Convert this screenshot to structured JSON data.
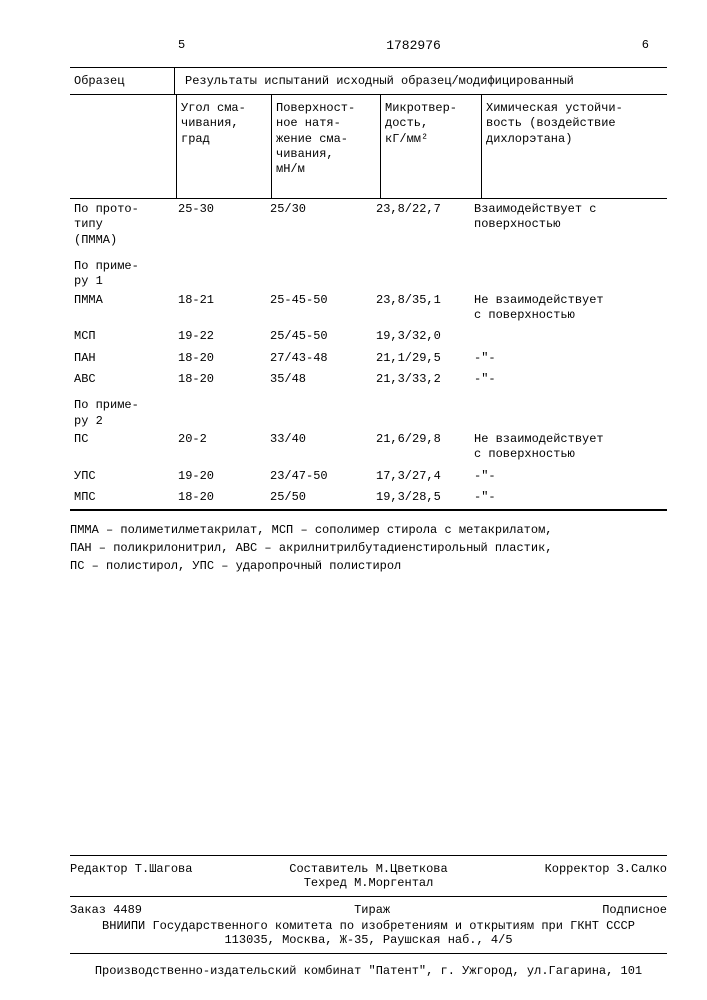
{
  "header": {
    "left_num": "5",
    "patent": "1782976",
    "right_num": "6"
  },
  "table": {
    "head_sample": "Образец",
    "head_results": "Результаты испытаний исходный образец/модифицированный",
    "sub": {
      "angle": "Угол сма-\nчивания,\nград",
      "tension": "Поверхност-\nное натя-\nжение сма-\nчивания,\nмН/м",
      "microhardness": "Микротвер-\nдость,\nкГ/мм²",
      "chemres": "Химическая устойчи-\nвость (воздействие\nдихлорэтана)"
    },
    "rows": [
      {
        "name": "По прото-\nтипу\n(ПММА)",
        "angle": "25-30",
        "tension": "25/30",
        "micro": "23,8/22,7",
        "chem": "Взаимодействует с\nповерхностью",
        "section": false
      },
      {
        "name": "По приме-\nру 1",
        "angle": "",
        "tension": "",
        "micro": "",
        "chem": "",
        "section": true
      },
      {
        "name": "ПММА",
        "angle": "18-21",
        "tension": "25-45-50",
        "micro": "23,8/35,1",
        "chem": "Не взаимодействует\nс поверхностью",
        "section": false
      },
      {
        "name": "МСП",
        "angle": "19-22",
        "tension": "25/45-50",
        "micro": "19,3/32,0",
        "chem": "",
        "section": false
      },
      {
        "name": "ПАН",
        "angle": "18-20",
        "tension": "27/43-48",
        "micro": "21,1/29,5",
        "chem": "-\"-",
        "section": false
      },
      {
        "name": "АВС",
        "angle": "18-20",
        "tension": "35/48",
        "micro": "21,3/33,2",
        "chem": "-\"-",
        "section": false
      },
      {
        "name": "По приме-\nру 2",
        "angle": "",
        "tension": "",
        "micro": "",
        "chem": "",
        "section": true
      },
      {
        "name": "ПС",
        "angle": "20-2",
        "tension": "33/40",
        "micro": "21,6/29,8",
        "chem": "Не взаимодействует\nс поверхностью",
        "section": false
      },
      {
        "name": "УПС",
        "angle": "19-20",
        "tension": "23/47-50",
        "micro": "17,3/27,4",
        "chem": "-\"-",
        "section": false
      },
      {
        "name": "МПС",
        "angle": "18-20",
        "tension": "25/50",
        "micro": "19,3/28,5",
        "chem": "-\"-",
        "section": false
      }
    ]
  },
  "legend": "ПММА – полиметилметакрилат,   МСП – сополимер стирола с метакрилатом,\nПАН – поликрилонитрил,   АВС – акрилнитрилбутадиенстирольный пластик,\nПС – полистирол,   УПС – ударопрочный полистирол",
  "footer": {
    "editor": "Редактор Т.Шагова",
    "compiler": "Составитель М.Цветкова",
    "techred": "Техред М.Моргентал",
    "corrector": "Корректор З.Салко",
    "order": "Заказ 4489",
    "tirazh": "Тираж",
    "podpis": "Подписное",
    "vniipi": "ВНИИПИ Государственного комитета по изобретениям и открытиям при ГКНТ СССР\n113035, Москва, Ж-35, Раушская наб., 4/5",
    "bottom": "Производственно-издательский комбинат \"Патент\", г. Ужгород, ул.Гагарина, 101"
  }
}
